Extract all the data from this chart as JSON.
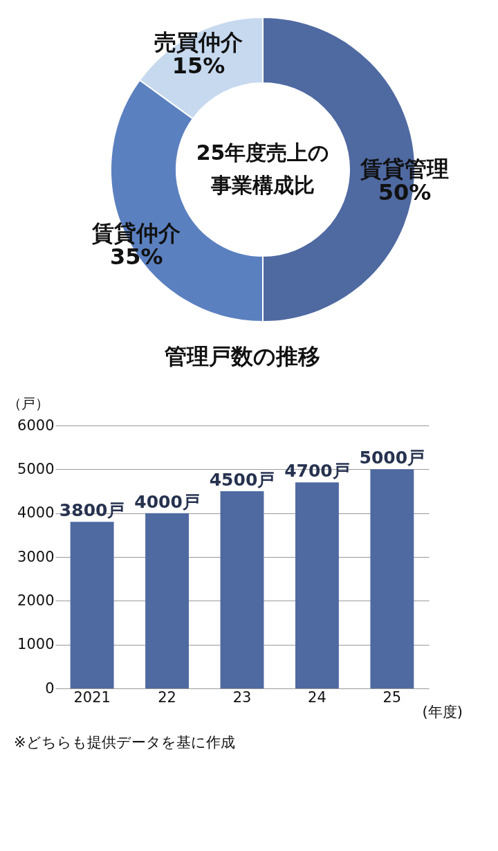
{
  "chart_data": [
    {
      "type": "donut",
      "annotations": [
        "25年度売上の",
        "事業構成比"
      ],
      "categories": [
        "賃貸管理",
        "賃貸仲介",
        "売買仲介"
      ],
      "values": [
        50,
        35,
        15
      ],
      "value_labels": [
        "50%",
        "35%",
        "15%"
      ],
      "colors": [
        "#4f69a1",
        "#5b80c0",
        "#c6d9ef"
      ]
    },
    {
      "type": "bar",
      "title": "管理戸数の推移",
      "ylabel": "（戸）",
      "xlabel": "(年度)",
      "categories": [
        "2021",
        "22",
        "23",
        "24",
        "25"
      ],
      "values": [
        3800,
        4000,
        4500,
        4700,
        5000
      ],
      "value_labels": [
        "3800戸",
        "4000戸",
        "4500戸",
        "4700戸",
        "5000戸"
      ],
      "color": "#4f69a1",
      "ylim": [
        0,
        6000
      ],
      "yticks": [
        0,
        1000,
        2000,
        3000,
        4000,
        5000,
        6000
      ],
      "grid": "y",
      "annotations": [
        "※どちらも提供データを基に作成"
      ]
    }
  ]
}
